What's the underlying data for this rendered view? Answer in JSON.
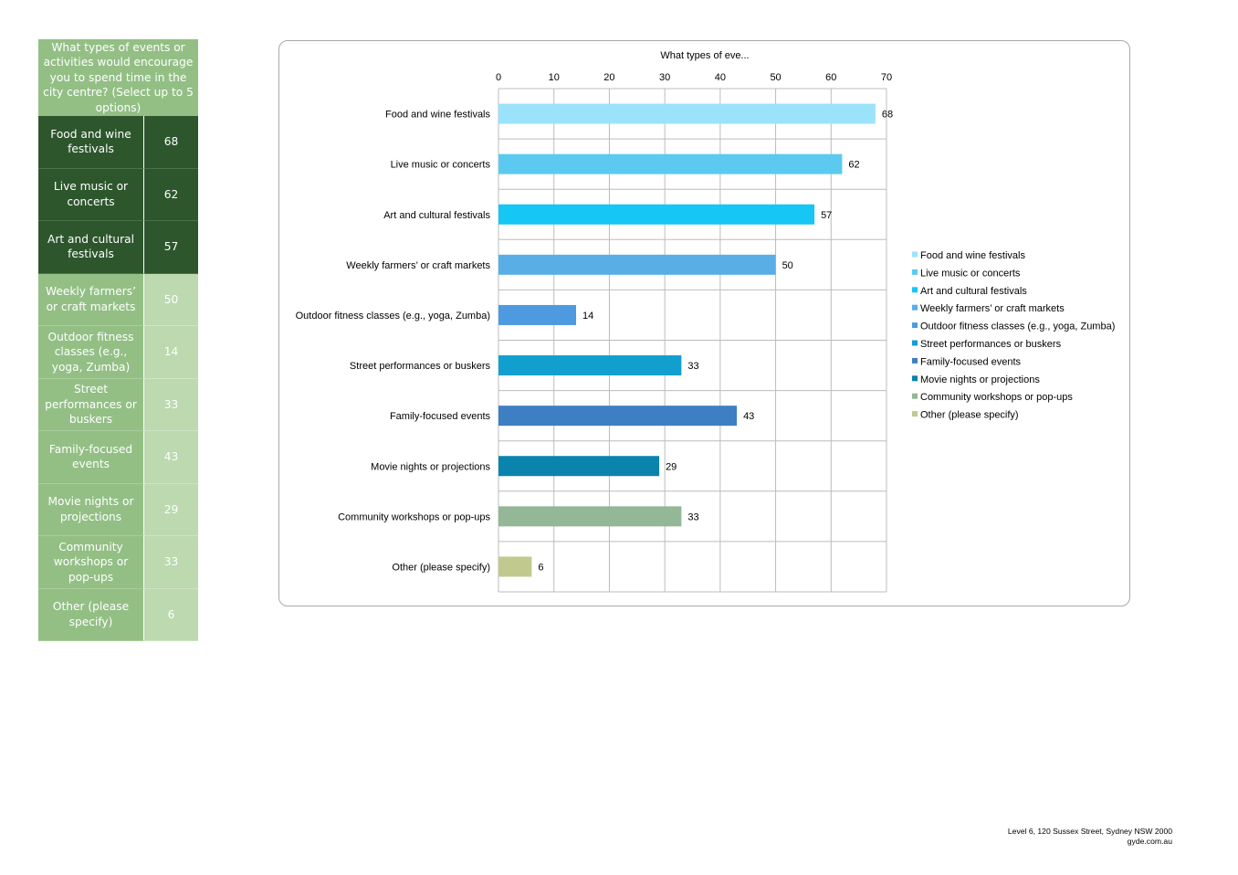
{
  "table": {
    "header": "What types of events or activities would encourage you to spend time in the city centre? (Select up to 5 options)",
    "rows": [
      {
        "label": "Food and wine festivals",
        "value": "68",
        "highlight": true
      },
      {
        "label": "Live music or concerts",
        "value": "62",
        "highlight": true
      },
      {
        "label": "Art and cultural festivals",
        "value": "57",
        "highlight": true
      },
      {
        "label": "Weekly farmers’ or craft markets",
        "value": "50",
        "highlight": false
      },
      {
        "label": "Outdoor fitness classes (e.g., yoga, Zumba)",
        "value": "14",
        "highlight": false
      },
      {
        "label": "Street performances or buskers",
        "value": "33",
        "highlight": false
      },
      {
        "label": "Family-focused events",
        "value": "43",
        "highlight": false
      },
      {
        "label": "Movie nights or projections",
        "value": "29",
        "highlight": false
      },
      {
        "label": "Community workshops or pop-ups",
        "value": "33",
        "highlight": false
      },
      {
        "label": "Other (please specify)",
        "value": "6",
        "highlight": false
      }
    ]
  },
  "chart_data": {
    "type": "bar",
    "orientation": "horizontal",
    "title": "What types of eve...",
    "categories": [
      "Food and wine festivals",
      "Live music or concerts",
      "Art and cultural festivals",
      "Weekly farmers’ or craft markets",
      "Outdoor fitness classes (e.g., yoga, Zumba)",
      "Street performances or buskers",
      "Family-focused events",
      "Movie nights or projections",
      "Community workshops or pop-ups",
      "Other (please specify)"
    ],
    "values": [
      68,
      62,
      57,
      50,
      14,
      33,
      43,
      29,
      33,
      6
    ],
    "colors": [
      "#9be3fb",
      "#5ccaf0",
      "#16c6f5",
      "#5aaee6",
      "#4d9ae0",
      "#119fd0",
      "#3e7fc4",
      "#0a83ad",
      "#93b797",
      "#c1c98f"
    ],
    "xlim": [
      0,
      70
    ],
    "xticks": [
      "0",
      "10",
      "20",
      "30",
      "40",
      "50",
      "60",
      "70"
    ],
    "xaxis_position": "top",
    "grid": true,
    "legend": "right",
    "data_labels": true
  },
  "footer": {
    "address": "Level 6, 120 Sussex Street, Sydney NSW 2000",
    "website": "gyde.com.au"
  }
}
